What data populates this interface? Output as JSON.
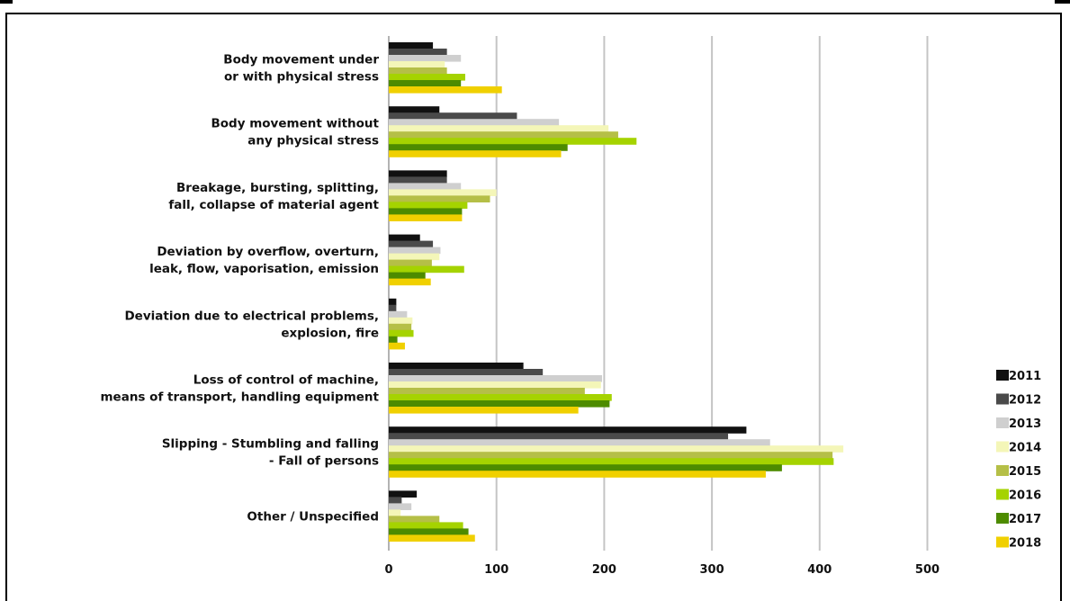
{
  "chart_data": {
    "type": "bar",
    "orientation": "horizontal",
    "categories": [
      [
        "Body movement under",
        "or with physical stress"
      ],
      [
        "Body movement without",
        "any physical stress"
      ],
      [
        "Breakage, bursting, splitting,",
        "fall, collapse of material agent"
      ],
      [
        "Deviation by overflow, overturn,",
        "leak, flow, vaporisation, emission"
      ],
      [
        "Deviation due to electrical problems,",
        "explosion, fire"
      ],
      [
        "Loss of control of machine,",
        "means of transport, handling equipment"
      ],
      [
        "Slipping - Stumbling and falling",
        "- Fall of persons"
      ],
      [
        "Other / Unspecified"
      ]
    ],
    "series": [
      {
        "name": "2011",
        "color": "#111111",
        "values": [
          41,
          47,
          54,
          29,
          7,
          125,
          332,
          26
        ]
      },
      {
        "name": "2012",
        "color": "#4a4a4a",
        "values": [
          54,
          119,
          54,
          41,
          7,
          143,
          315,
          12
        ]
      },
      {
        "name": "2013",
        "color": "#cfcfcf",
        "values": [
          67,
          158,
          67,
          48,
          17,
          198,
          354,
          21
        ]
      },
      {
        "name": "2014",
        "color": "#f4f6b8",
        "values": [
          52,
          204,
          100,
          47,
          22,
          197,
          422,
          11
        ]
      },
      {
        "name": "2015",
        "color": "#b5bf47",
        "values": [
          54,
          213,
          94,
          40,
          21,
          182,
          412,
          47
        ]
      },
      {
        "name": "2016",
        "color": "#a5d300",
        "values": [
          71,
          230,
          73,
          70,
          23,
          207,
          413,
          69
        ]
      },
      {
        "name": "2017",
        "color": "#4d8b00",
        "values": [
          67,
          166,
          68,
          34,
          8,
          205,
          365,
          74
        ]
      },
      {
        "name": "2018",
        "color": "#f0d000",
        "values": [
          105,
          160,
          68,
          39,
          15,
          176,
          350,
          80
        ]
      }
    ],
    "xlim": [
      0,
      500
    ],
    "x_ticks": [
      0,
      100,
      200,
      300,
      400,
      500
    ],
    "grid": "vertical",
    "legend_position": "bottom-right",
    "title": "",
    "xlabel": "",
    "ylabel": ""
  }
}
